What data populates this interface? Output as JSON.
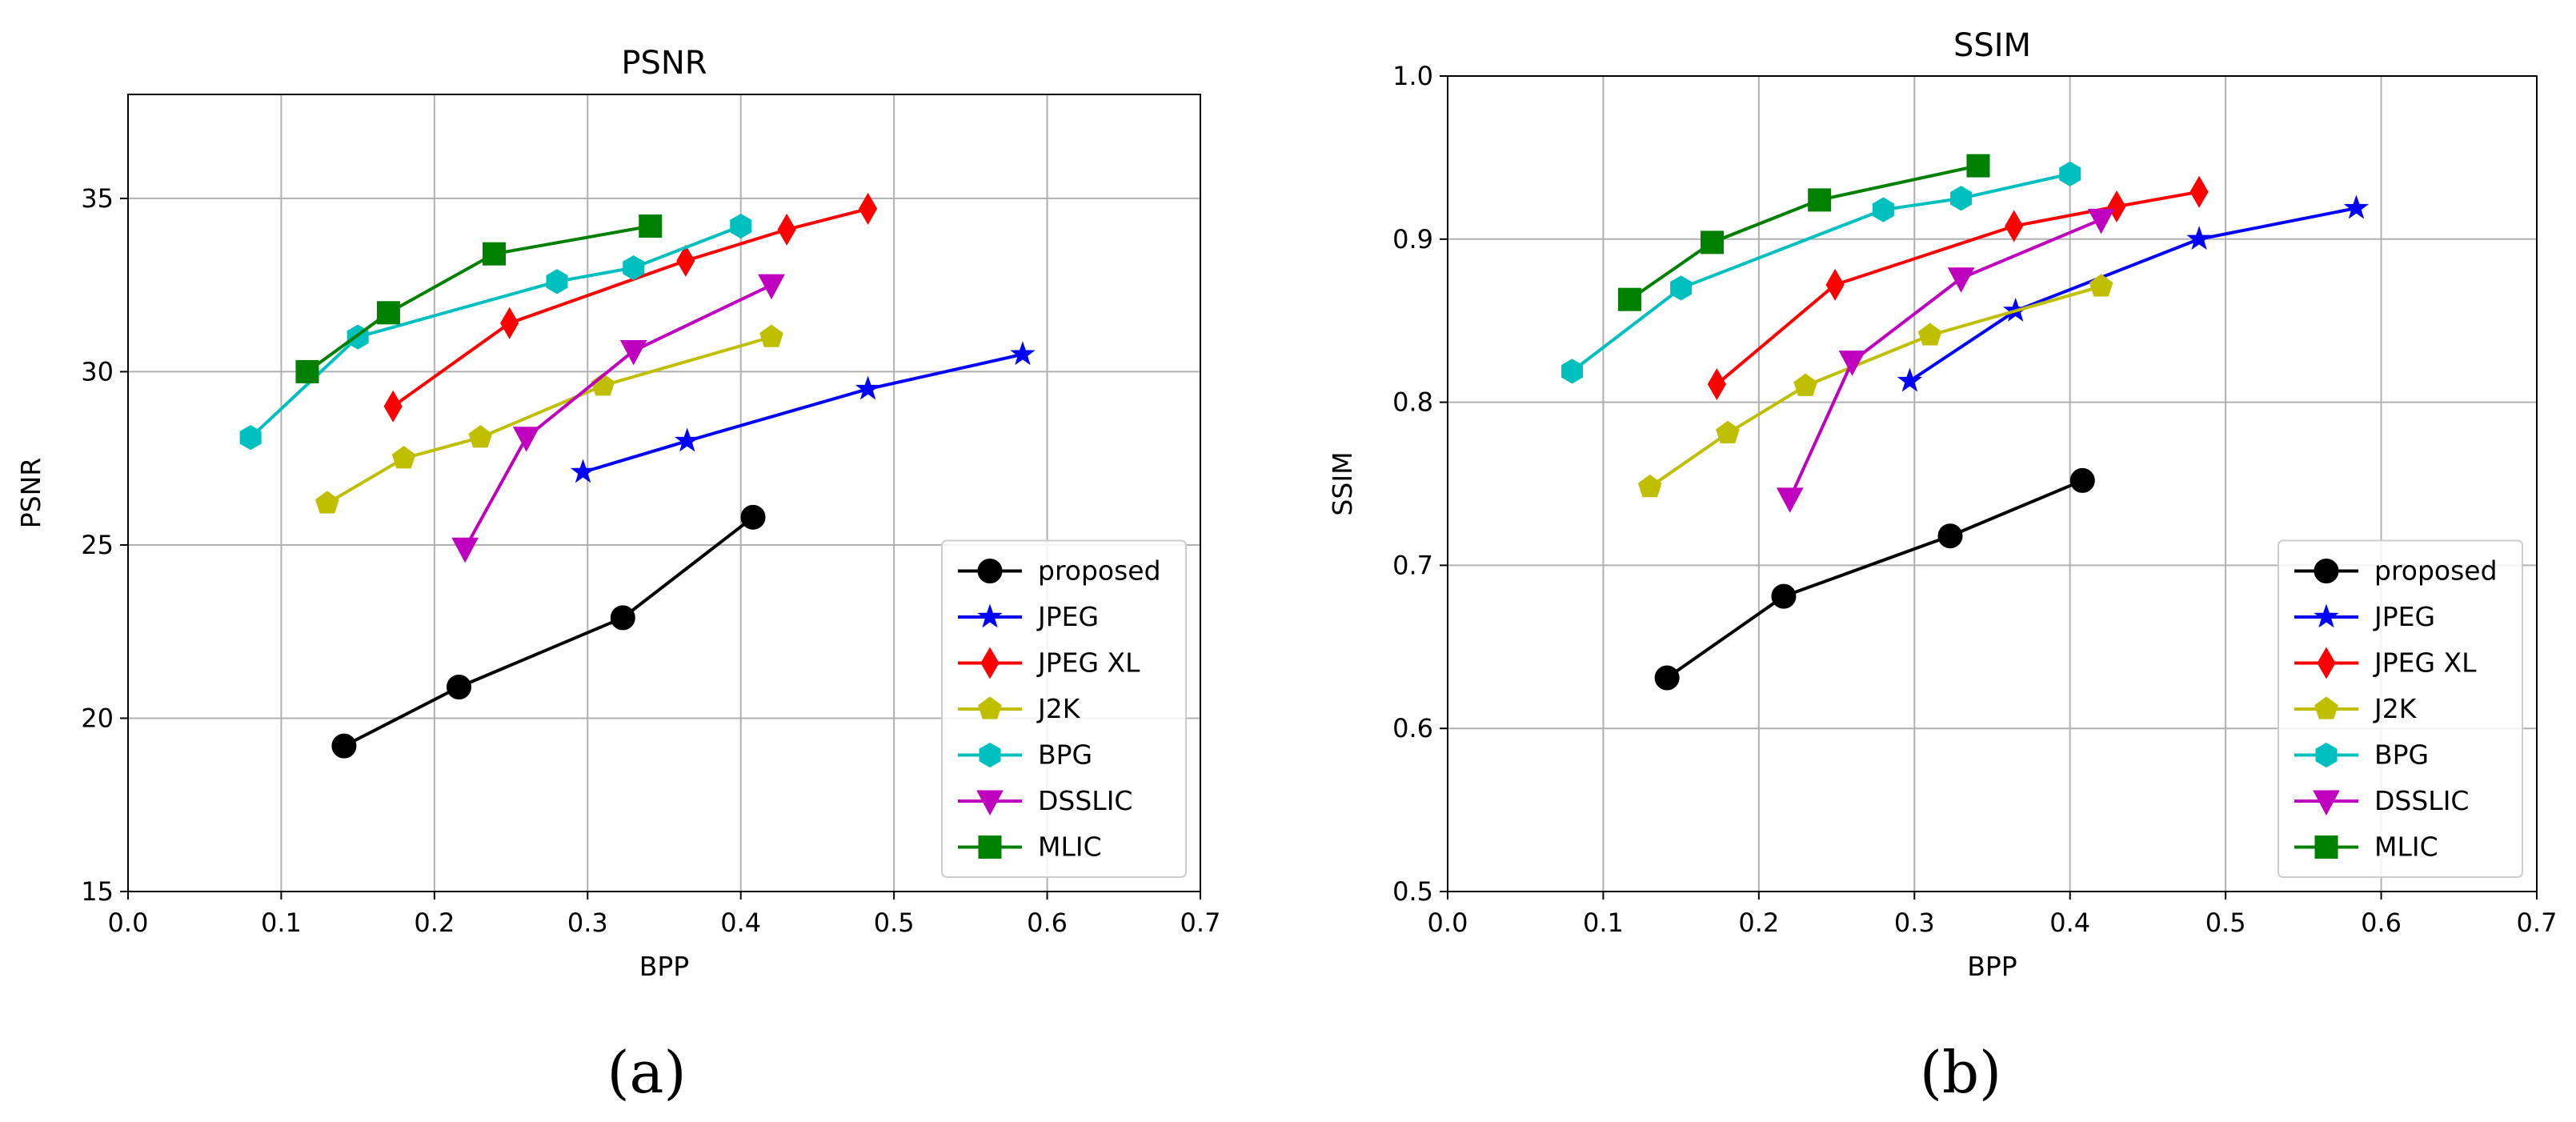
{
  "figure": {
    "subcaptions": [
      "(a)",
      "(b)"
    ]
  },
  "chart_data": [
    {
      "type": "line",
      "title": "PSNR",
      "xlabel": "BPP",
      "ylabel": "PSNR",
      "xlim": [
        0.0,
        0.7
      ],
      "ylim": [
        15,
        38
      ],
      "xticks": [
        "0.0",
        "0.1",
        "0.2",
        "0.3",
        "0.4",
        "0.5",
        "0.6",
        "0.7"
      ],
      "yticks": [
        "15",
        "20",
        "25",
        "30",
        "35"
      ],
      "grid": true,
      "legend_position": "lower-right",
      "series": [
        {
          "name": "proposed",
          "color": "#000000",
          "marker": "circle",
          "x": [
            0.141,
            0.216,
            0.323,
            0.408
          ],
          "y": [
            19.2,
            20.9,
            22.9,
            25.8
          ]
        },
        {
          "name": "JPEG",
          "color": "#0000ff",
          "marker": "star",
          "x": [
            0.297,
            0.365,
            0.483,
            0.584
          ],
          "y": [
            27.1,
            28.0,
            29.5,
            30.5
          ]
        },
        {
          "name": "JPEG XL",
          "color": "#ff0000",
          "marker": "diamond",
          "x": [
            0.173,
            0.249,
            0.364,
            0.43,
            0.483
          ],
          "y": [
            29.0,
            31.4,
            33.2,
            34.1,
            34.7
          ]
        },
        {
          "name": "J2K",
          "color": "#bfbf00",
          "marker": "pentagon",
          "x": [
            0.13,
            0.18,
            0.23,
            0.31,
            0.42
          ],
          "y": [
            26.2,
            27.5,
            28.1,
            29.6,
            31.0
          ]
        },
        {
          "name": "BPG",
          "color": "#00bfbf",
          "marker": "hexagon",
          "x": [
            0.08,
            0.15,
            0.28,
            0.33,
            0.4
          ],
          "y": [
            28.1,
            31.0,
            32.6,
            33.0,
            34.2
          ]
        },
        {
          "name": "DSSLIC",
          "color": "#bf00bf",
          "marker": "triangle-down",
          "x": [
            0.22,
            0.26,
            0.33,
            0.42
          ],
          "y": [
            24.9,
            28.1,
            30.6,
            32.5
          ]
        },
        {
          "name": "MLIC",
          "color": "#008000",
          "marker": "square",
          "x": [
            0.117,
            0.17,
            0.239,
            0.341
          ],
          "y": [
            30.0,
            31.7,
            33.4,
            34.2
          ]
        }
      ]
    },
    {
      "type": "line",
      "title": "SSIM",
      "xlabel": "BPP",
      "ylabel": "SSIM",
      "xlim": [
        0.0,
        0.7
      ],
      "ylim": [
        0.5,
        1.0
      ],
      "xticks": [
        "0.0",
        "0.1",
        "0.2",
        "0.3",
        "0.4",
        "0.5",
        "0.6",
        "0.7"
      ],
      "yticks": [
        "0.5",
        "0.6",
        "0.7",
        "0.8",
        "0.9",
        "1.0"
      ],
      "grid": true,
      "legend_position": "lower-right",
      "series": [
        {
          "name": "proposed",
          "color": "#000000",
          "marker": "circle",
          "x": [
            0.141,
            0.216,
            0.323,
            0.408
          ],
          "y": [
            0.631,
            0.681,
            0.718,
            0.752
          ]
        },
        {
          "name": "JPEG",
          "color": "#0000ff",
          "marker": "star",
          "x": [
            0.297,
            0.365,
            0.483,
            0.584
          ],
          "y": [
            0.813,
            0.856,
            0.9,
            0.919
          ]
        },
        {
          "name": "JPEG XL",
          "color": "#ff0000",
          "marker": "diamond",
          "x": [
            0.173,
            0.249,
            0.364,
            0.43,
            0.483
          ],
          "y": [
            0.811,
            0.872,
            0.908,
            0.92,
            0.929
          ]
        },
        {
          "name": "J2K",
          "color": "#bfbf00",
          "marker": "pentagon",
          "x": [
            0.13,
            0.18,
            0.23,
            0.31,
            0.42
          ],
          "y": [
            0.748,
            0.781,
            0.81,
            0.841,
            0.871
          ]
        },
        {
          "name": "BPG",
          "color": "#00bfbf",
          "marker": "hexagon",
          "x": [
            0.08,
            0.15,
            0.28,
            0.33,
            0.4
          ],
          "y": [
            0.819,
            0.87,
            0.918,
            0.925,
            0.94
          ]
        },
        {
          "name": "DSSLIC",
          "color": "#bf00bf",
          "marker": "triangle-down",
          "x": [
            0.22,
            0.26,
            0.33,
            0.42
          ],
          "y": [
            0.741,
            0.825,
            0.876,
            0.912
          ]
        },
        {
          "name": "MLIC",
          "color": "#008000",
          "marker": "square",
          "x": [
            0.117,
            0.17,
            0.239,
            0.341
          ],
          "y": [
            0.863,
            0.898,
            0.924,
            0.945
          ]
        }
      ]
    }
  ]
}
